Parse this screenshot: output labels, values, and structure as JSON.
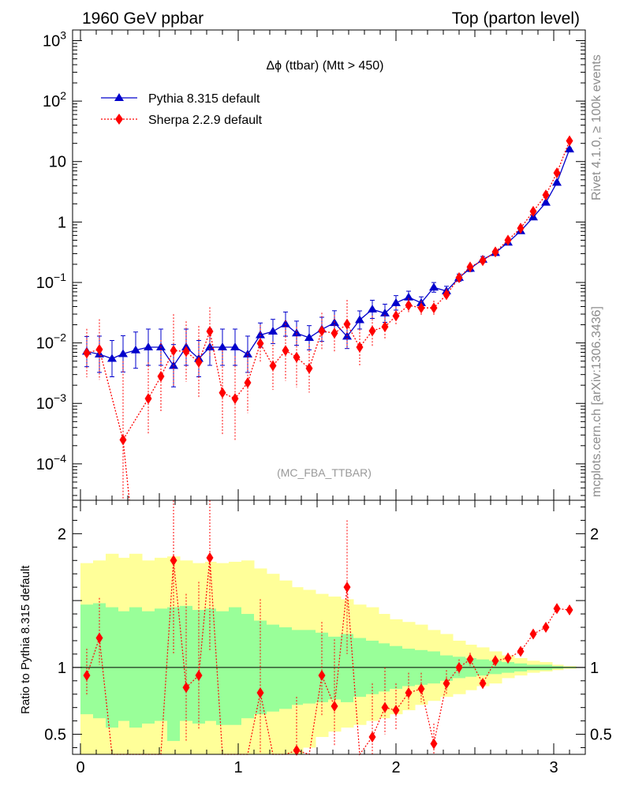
{
  "header": {
    "left": "1960 GeV ppbar",
    "right": "Top (parton level)"
  },
  "side": {
    "top": "Rivet 4.1.0, ≥ 100k events",
    "bottom": "mcplots.cern.ch [arXiv:1306.3436]"
  },
  "analysis_tag": "(MC_FBA_TTBAR)",
  "chart_data": [
    {
      "type": "line",
      "title": "Δϕ (ttbar) (Mtt > 450)",
      "xlabel": "",
      "ylabel": "",
      "yscale": "log",
      "xlim": [
        -0.05,
        3.2
      ],
      "ylim": [
        2.5e-05,
        1500
      ],
      "yticks": [
        {
          "v": 0.0001,
          "label": "10^-4"
        },
        {
          "v": 0.001,
          "label": "10^-3"
        },
        {
          "v": 0.01,
          "label": "10^-2"
        },
        {
          "v": 0.1,
          "label": "10^-1"
        },
        {
          "v": 1,
          "label": "1"
        },
        {
          "v": 10,
          "label": "10"
        },
        {
          "v": 100,
          "label": "10^2"
        },
        {
          "v": 1000,
          "label": "10^3"
        }
      ],
      "legend": [
        "Pythia 8.315 default",
        "Sherpa 2.2.9 default"
      ],
      "series": [
        {
          "name": "Pythia 8.315 default",
          "color": "#0000cc",
          "marker": "triangle",
          "style": "solid",
          "x": [
            0.04,
            0.12,
            0.2,
            0.27,
            0.35,
            0.43,
            0.51,
            0.59,
            0.67,
            0.75,
            0.82,
            0.9,
            0.98,
            1.06,
            1.14,
            1.22,
            1.3,
            1.37,
            1.45,
            1.53,
            1.61,
            1.69,
            1.77,
            1.85,
            1.93,
            2.0,
            2.08,
            2.16,
            2.24,
            2.32,
            2.4,
            2.47,
            2.55,
            2.63,
            2.71,
            2.79,
            2.87,
            2.95,
            3.02,
            3.1
          ],
          "y": [
            0.0072,
            0.0065,
            0.0055,
            0.0066,
            0.0076,
            0.0085,
            0.0085,
            0.0042,
            0.0085,
            0.0055,
            0.0085,
            0.0085,
            0.0085,
            0.0065,
            0.0135,
            0.0155,
            0.0205,
            0.0145,
            0.0122,
            0.0168,
            0.0215,
            0.0128,
            0.024,
            0.036,
            0.031,
            0.046,
            0.057,
            0.046,
            0.083,
            0.072,
            0.12,
            0.17,
            0.24,
            0.31,
            0.46,
            0.71,
            1.2,
            2.1,
            4.5,
            16
          ],
          "err": [
            0.25,
            0.3,
            0.3,
            0.3,
            0.3,
            0.3,
            0.3,
            0.35,
            0.3,
            0.3,
            0.3,
            0.3,
            0.3,
            0.3,
            0.2,
            0.2,
            0.2,
            0.2,
            0.2,
            0.2,
            0.2,
            0.2,
            0.15,
            0.15,
            0.15,
            0.12,
            0.1,
            0.1,
            0.08,
            0.08,
            0.06,
            0.05,
            0.05,
            0.04,
            0.04,
            0.03,
            0.03,
            0.02,
            0.02,
            0.02
          ]
        },
        {
          "name": "Sherpa 2.2.9 default",
          "color": "#ff0000",
          "marker": "diamond",
          "style": "dotted",
          "x": [
            0.04,
            0.12,
            0.2,
            0.27,
            0.35,
            0.43,
            0.51,
            0.59,
            0.67,
            0.75,
            0.82,
            0.9,
            0.98,
            1.06,
            1.14,
            1.22,
            1.3,
            1.37,
            1.45,
            1.53,
            1.61,
            1.69,
            1.77,
            1.85,
            1.93,
            2.0,
            2.08,
            2.16,
            2.24,
            2.32,
            2.4,
            2.47,
            2.55,
            2.63,
            2.71,
            2.79,
            2.87,
            2.95,
            3.02,
            3.1
          ],
          "y": [
            0.0068,
            0.0078,
            null,
            0.00025,
            null,
            0.0012,
            0.0028,
            0.0075,
            0.0072,
            0.0048,
            0.0155,
            0.0015,
            0.0012,
            0.0022,
            0.0098,
            0.0042,
            0.0075,
            0.0058,
            0.0038,
            0.0158,
            0.0145,
            0.0205,
            0.0085,
            0.0158,
            0.0185,
            0.028,
            0.042,
            0.038,
            0.038,
            0.063,
            0.12,
            0.18,
            0.23,
            0.32,
            0.5,
            0.79,
            1.5,
            2.8,
            6.5,
            22
          ],
          "err": [
            0.4,
            0.5,
            0,
            1.3,
            0,
            0.6,
            0.6,
            0.6,
            0.5,
            0.6,
            0.4,
            0.7,
            0.7,
            0.5,
            0.3,
            0.4,
            0.5,
            0.5,
            0.4,
            0.3,
            0.3,
            0.4,
            0.3,
            0.25,
            0.2,
            0.15,
            0.12,
            0.12,
            0.12,
            0.1,
            0.08,
            0.06,
            0.05,
            0.05,
            0.05,
            0.04,
            0.03,
            0.03,
            0.02,
            0.02
          ]
        }
      ]
    },
    {
      "type": "line",
      "title": "",
      "xlabel": "",
      "ylabel": "Ratio to Pythia 8.315 default",
      "xlim": [
        -0.05,
        3.2
      ],
      "ylim": [
        0.35,
        2.25
      ],
      "yticks": [
        {
          "v": 0.5,
          "label": "0.5"
        },
        {
          "v": 1,
          "label": "1"
        },
        {
          "v": 2,
          "label": "2"
        }
      ],
      "xticks": [
        {
          "v": 0,
          "label": "0"
        },
        {
          "v": 1,
          "label": "1"
        },
        {
          "v": 2,
          "label": "2"
        },
        {
          "v": 3,
          "label": "3"
        }
      ],
      "bands": {
        "edges": [
          0.0,
          0.08,
          0.16,
          0.24,
          0.31,
          0.39,
          0.47,
          0.55,
          0.63,
          0.71,
          0.79,
          0.86,
          0.94,
          1.02,
          1.1,
          1.18,
          1.26,
          1.34,
          1.41,
          1.49,
          1.57,
          1.65,
          1.73,
          1.81,
          1.89,
          1.96,
          2.04,
          2.12,
          2.2,
          2.28,
          2.36,
          2.44,
          2.51,
          2.59,
          2.67,
          2.75,
          2.83,
          2.91,
          2.99,
          3.06,
          3.14
        ],
        "yellow_hi": [
          1.78,
          1.8,
          1.85,
          1.82,
          1.85,
          1.8,
          1.82,
          1.83,
          1.8,
          1.78,
          1.79,
          1.78,
          1.79,
          1.8,
          1.74,
          1.7,
          1.65,
          1.6,
          1.58,
          1.55,
          1.53,
          1.51,
          1.47,
          1.45,
          1.4,
          1.36,
          1.34,
          1.32,
          1.28,
          1.25,
          1.2,
          1.17,
          1.15,
          1.12,
          1.09,
          1.07,
          1.05,
          1.04,
          1.02,
          1.01
        ],
        "yellow_lo": [
          0.25,
          0.25,
          0.25,
          0.25,
          0.25,
          0.25,
          0.25,
          0.25,
          0.25,
          0.25,
          0.25,
          0.25,
          0.25,
          0.25,
          0.25,
          0.25,
          0.25,
          0.25,
          0.4,
          0.48,
          0.52,
          0.55,
          0.57,
          0.6,
          0.62,
          0.65,
          0.68,
          0.72,
          0.75,
          0.78,
          0.8,
          0.83,
          0.86,
          0.88,
          0.92,
          0.94,
          0.96,
          0.97,
          0.98,
          0.99
        ],
        "green_hi": [
          1.47,
          1.48,
          1.45,
          1.42,
          1.45,
          1.42,
          1.44,
          1.45,
          1.46,
          1.43,
          1.44,
          1.42,
          1.45,
          1.4,
          1.35,
          1.32,
          1.3,
          1.28,
          1.28,
          1.26,
          1.23,
          1.25,
          1.22,
          1.2,
          1.18,
          1.16,
          1.14,
          1.13,
          1.12,
          1.09,
          1.08,
          1.07,
          1.06,
          1.05,
          1.04,
          1.03,
          1.02,
          1.02,
          1.01,
          1.005
        ],
        "green_lo": [
          0.65,
          0.62,
          0.55,
          0.6,
          0.55,
          0.58,
          0.6,
          0.45,
          0.6,
          0.58,
          0.6,
          0.57,
          0.57,
          0.62,
          0.65,
          0.67,
          0.69,
          0.72,
          0.73,
          0.74,
          0.76,
          0.74,
          0.78,
          0.8,
          0.82,
          0.84,
          0.86,
          0.87,
          0.88,
          0.9,
          0.92,
          0.93,
          0.94,
          0.95,
          0.96,
          0.97,
          0.98,
          0.98,
          0.99,
          0.995
        ]
      },
      "series": [
        {
          "name": "Sherpa 2.2.9 default",
          "color": "#ff0000",
          "marker": "diamond",
          "style": "dotted",
          "x": [
            0.04,
            0.12,
            0.2,
            0.27,
            0.35,
            0.43,
            0.51,
            0.59,
            0.67,
            0.75,
            0.82,
            0.9,
            0.98,
            1.06,
            1.14,
            1.22,
            1.3,
            1.37,
            1.45,
            1.53,
            1.61,
            1.69,
            1.77,
            1.85,
            1.93,
            2.0,
            2.08,
            2.16,
            2.24,
            2.32,
            2.4,
            2.47,
            2.55,
            2.63,
            2.71,
            2.79,
            2.87,
            2.95,
            3.02,
            3.1
          ],
          "y": [
            0.94,
            1.22,
            null,
            null,
            null,
            null,
            null,
            1.8,
            0.85,
            0.94,
            1.82,
            null,
            null,
            null,
            0.81,
            null,
            null,
            0.38,
            null,
            0.94,
            0.71,
            1.6,
            null,
            0.48,
            0.7,
            0.68,
            0.81,
            0.84,
            0.43,
            0.88,
            1.0,
            1.06,
            0.88,
            1.05,
            1.07,
            1.12,
            1.25,
            1.3,
            1.44,
            1.43
          ],
          "err_lo": [
            0.15,
            0.2,
            0,
            0,
            0,
            0,
            0,
            0.7,
            0.4,
            0.4,
            0.7,
            0,
            0,
            0,
            0.5,
            0,
            0,
            0.15,
            0,
            0.3,
            0.3,
            0.5,
            0,
            0.2,
            0.2,
            0.15,
            0.12,
            0.1,
            0.1,
            0.08,
            0.06,
            0.05,
            0.04,
            0.04,
            0.04,
            0.03,
            0.02,
            0.02,
            0.02,
            0.01
          ],
          "err_hi": [
            0.2,
            0.3,
            0,
            0,
            0,
            0,
            0,
            0.6,
            0.7,
            0.7,
            0.6,
            0,
            0,
            0,
            0.7,
            0,
            0,
            0.4,
            0,
            0.4,
            0.5,
            0.5,
            0,
            0.4,
            0.3,
            0.2,
            0.15,
            0.12,
            0.15,
            0.1,
            0.06,
            0.05,
            0.04,
            0.04,
            0.04,
            0.03,
            0.02,
            0.02,
            0.02,
            0.01
          ]
        }
      ]
    }
  ]
}
